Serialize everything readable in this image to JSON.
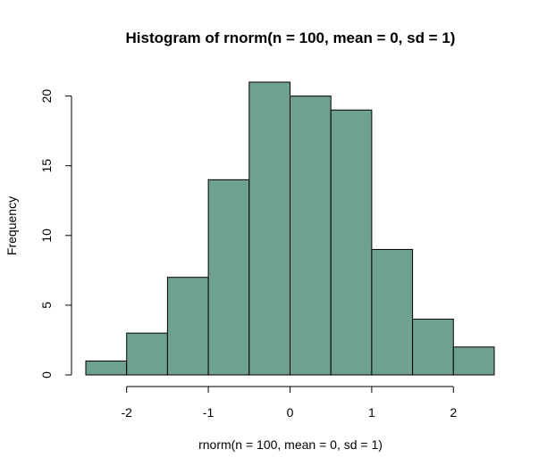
{
  "chart_data": {
    "type": "bar",
    "title": "Histogram of rnorm(n = 100, mean = 0, sd = 1)",
    "xlabel": "rnorm(n = 100, mean = 0, sd = 1)",
    "ylabel": "Frequency",
    "bins": [
      {
        "x0": -2.5,
        "x1": -2.0,
        "count": 1
      },
      {
        "x0": -2.0,
        "x1": -1.5,
        "count": 3
      },
      {
        "x0": -1.5,
        "x1": -1.0,
        "count": 7
      },
      {
        "x0": -1.0,
        "x1": -0.5,
        "count": 14
      },
      {
        "x0": -0.5,
        "x1": 0.0,
        "count": 21
      },
      {
        "x0": 0.0,
        "x1": 0.5,
        "count": 20
      },
      {
        "x0": 0.5,
        "x1": 1.0,
        "count": 19
      },
      {
        "x0": 1.0,
        "x1": 1.5,
        "count": 9
      },
      {
        "x0": 1.5,
        "x1": 2.0,
        "count": 4
      },
      {
        "x0": 2.0,
        "x1": 2.5,
        "count": 2
      }
    ],
    "xlim": [
      -2.5,
      2.5
    ],
    "ylim": [
      0,
      21
    ],
    "x_ticks": [
      -2,
      -1,
      0,
      1,
      2
    ],
    "y_ticks": [
      0,
      5,
      10,
      15,
      20
    ],
    "bar_color": "#6fa192",
    "grid": false,
    "legend": "none"
  }
}
